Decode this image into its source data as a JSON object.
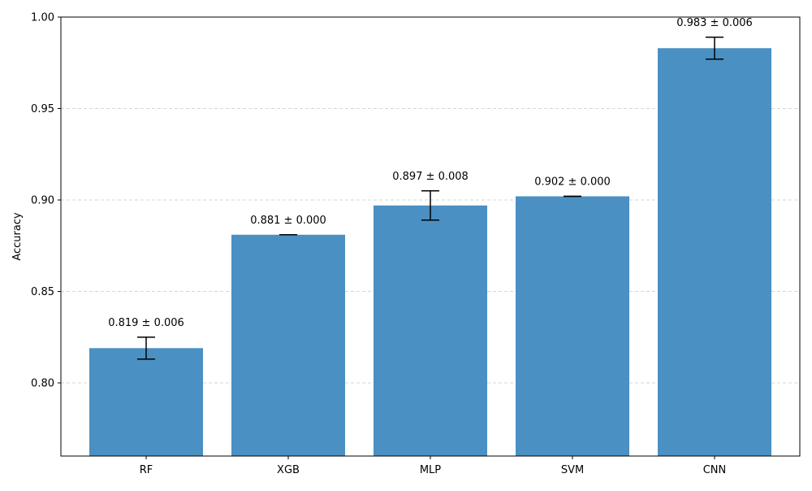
{
  "chart_data": {
    "type": "bar",
    "title": "",
    "xlabel": "",
    "ylabel": "Accuracy",
    "categories": [
      "RF",
      "XGB",
      "MLP",
      "SVM",
      "CNN"
    ],
    "values": [
      0.819,
      0.881,
      0.897,
      0.902,
      0.983
    ],
    "errors": [
      0.006,
      0.0,
      0.008,
      0.0,
      0.006
    ],
    "value_labels": [
      "0.819 ± 0.006",
      "0.881 ± 0.000",
      "0.897 ± 0.008",
      "0.902 ± 0.000",
      "0.983 ± 0.006"
    ],
    "ylim": [
      0.76,
      1.0
    ],
    "yticks": [
      0.8,
      0.85,
      0.9,
      0.95,
      1.0
    ],
    "ytick_labels": [
      "0.80",
      "0.85",
      "0.90",
      "0.95",
      "1.00"
    ],
    "grid": "y-dashed",
    "bar_color": "#4a90c2",
    "error_color": "#000000"
  }
}
